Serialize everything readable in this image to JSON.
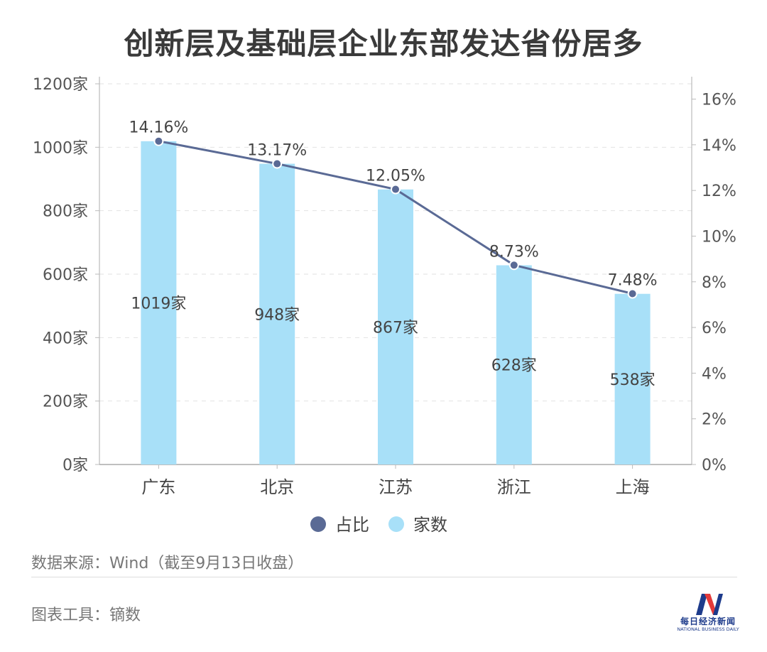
{
  "title": "创新层及基础层企业东部发达省份居多",
  "chart_data": {
    "type": "bar",
    "categories": [
      "广东",
      "北京",
      "江苏",
      "浙江",
      "上海"
    ],
    "series": [
      {
        "name": "家数",
        "type": "bar",
        "axis": "left",
        "values": [
          1019,
          948,
          867,
          628,
          538
        ],
        "labels": [
          "1019家",
          "948家",
          "867家",
          "628家",
          "538家"
        ],
        "color": "#a8e0f8"
      },
      {
        "name": "占比",
        "type": "line",
        "axis": "right",
        "values": [
          14.16,
          13.17,
          12.05,
          8.73,
          7.48
        ],
        "labels": [
          "14.16%",
          "13.17%",
          "12.05%",
          "8.73%",
          "7.48%"
        ],
        "color": "#5a6a95"
      }
    ],
    "y_left": {
      "ylim": [
        0,
        1200
      ],
      "ticks": [
        "0家",
        "200家",
        "400家",
        "600家",
        "800家",
        "1000家",
        "1200家"
      ],
      "tick_values": [
        0,
        200,
        400,
        600,
        800,
        1000,
        1200
      ]
    },
    "y_right": {
      "ylim": [
        0,
        16.67
      ],
      "ticks": [
        "0%",
        "2%",
        "4%",
        "6%",
        "8%",
        "10%",
        "12%",
        "14%",
        "16%"
      ],
      "tick_values": [
        0,
        2,
        4,
        6,
        8,
        10,
        12,
        14,
        16
      ]
    },
    "grid": true,
    "legend": {
      "position": "bottom",
      "items": [
        "占比",
        "家数"
      ]
    }
  },
  "source": "数据来源：Wind（截至9月13日收盘）",
  "tool": "图表工具：镝数",
  "logo": {
    "cn": "每日经济新闻",
    "en": "NATIONAL BUSINESS DAILY"
  }
}
